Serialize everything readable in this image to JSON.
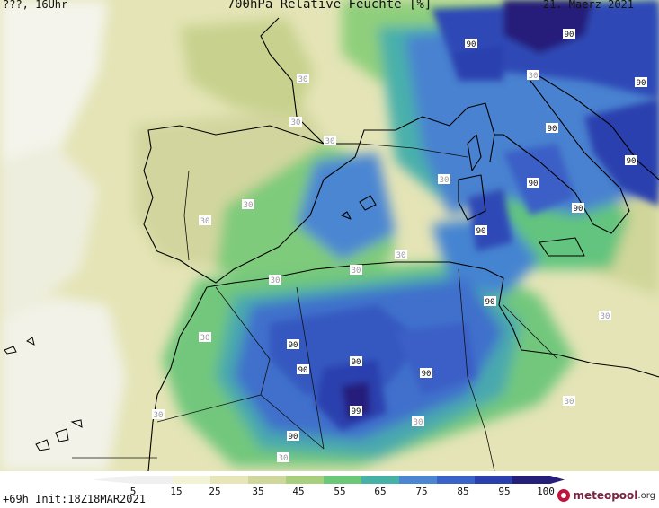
{
  "header": {
    "left": "???, 16Uhr",
    "title": "700hPa Relative Feuchte [%]",
    "right": "21. Maerz 2021"
  },
  "footer": {
    "run": "+69h Init:18Z18MAR2021"
  },
  "brand": {
    "name": "meteopool",
    "suffix": ".org"
  },
  "legend": {
    "ticks": [
      "5",
      "15",
      "25",
      "35",
      "45",
      "55",
      "65",
      "75",
      "85",
      "95",
      "100"
    ],
    "colors": [
      "#f0f0f0",
      "#f2f2d4",
      "#e6e6b8",
      "#cfd79c",
      "#a8cf7e",
      "#6cc879",
      "#46b2a6",
      "#4b86d2",
      "#3b62c8",
      "#2c3fae",
      "#251f7a"
    ]
  },
  "contour_labels": [
    {
      "text": "90"
    },
    {
      "text": "90"
    },
    {
      "text": "30"
    },
    {
      "text": "90"
    },
    {
      "text": "30"
    },
    {
      "text": "30"
    },
    {
      "text": "90"
    },
    {
      "text": "90"
    },
    {
      "text": "30"
    },
    {
      "text": "90"
    },
    {
      "text": "90"
    },
    {
      "text": "30"
    },
    {
      "text": "30"
    },
    {
      "text": "90"
    },
    {
      "text": "30"
    },
    {
      "text": "30"
    },
    {
      "text": "90"
    },
    {
      "text": "30"
    },
    {
      "text": "30"
    },
    {
      "text": "90"
    },
    {
      "text": "90"
    },
    {
      "text": "90"
    },
    {
      "text": "90"
    },
    {
      "text": "99"
    },
    {
      "text": "30"
    },
    {
      "text": "30"
    },
    {
      "text": "90"
    },
    {
      "text": "30"
    },
    {
      "text": "30"
    },
    {
      "text": "30"
    }
  ]
}
